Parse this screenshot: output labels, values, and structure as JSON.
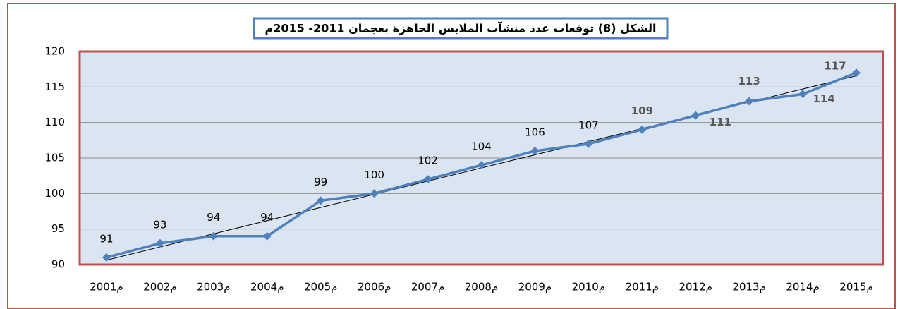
{
  "chart_data": {
    "type": "line",
    "title": "الشكل (8) توقعات عدد منشآت الملابس الجاهزة بعجمان 2011- 2015م",
    "categories": [
      "2001م",
      "2002م",
      "2003م",
      "م2004",
      "م2005",
      "2006م",
      "2007م",
      "2008م",
      "2009م",
      "2010م",
      "2011م",
      "2012م",
      "2013م",
      "2014م",
      "2015م"
    ],
    "values": [
      91,
      93,
      94,
      94,
      99,
      100,
      102,
      104,
      106,
      107,
      109,
      111,
      113,
      114,
      117
    ],
    "color": "#4f81bd",
    "ylim": [
      90,
      120
    ],
    "yticks": [
      90,
      95,
      100,
      105,
      110,
      115,
      120
    ],
    "grid": true,
    "trendline": true
  }
}
